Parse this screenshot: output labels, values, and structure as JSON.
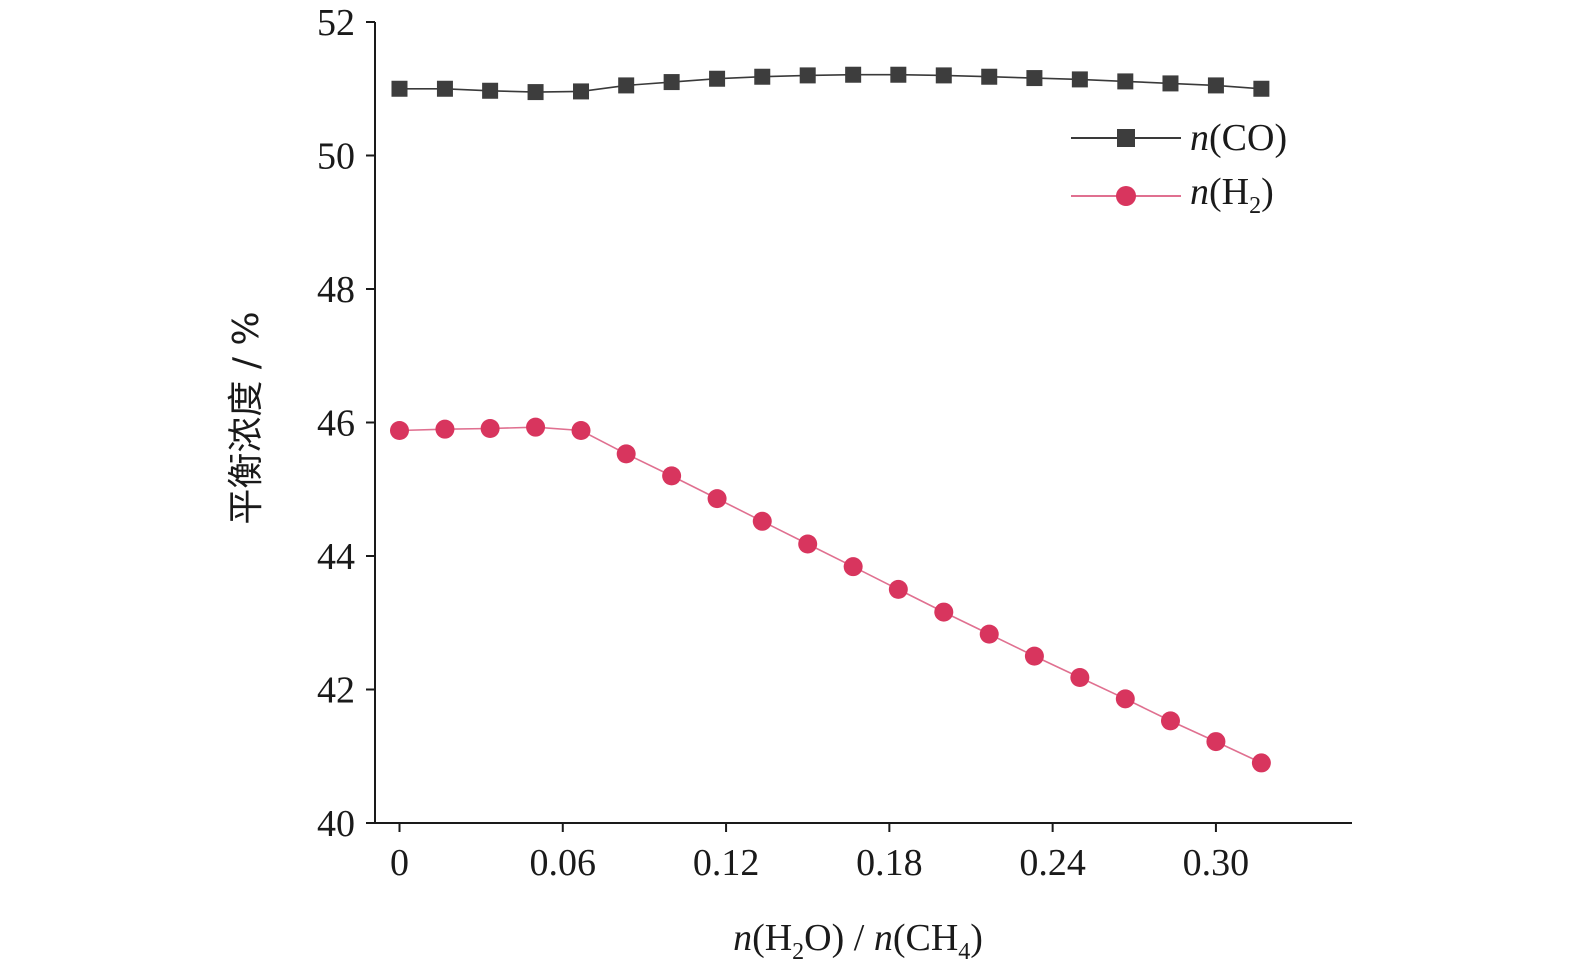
{
  "chart_data": {
    "type": "line",
    "title": "",
    "xlabel": {
      "n1": "n",
      "open1": "(H",
      "sub1": "2",
      "close1": "O) / ",
      "n2": "n",
      "open2": "(CH",
      "sub2": "4",
      "close2": ")"
    },
    "ylabel": "平衡浓度 / %",
    "xlim": [
      -0.009,
      0.35
    ],
    "ylim": [
      40,
      52
    ],
    "xticks": [
      0,
      0.06,
      0.12,
      0.18,
      0.24,
      0.3
    ],
    "xtick_labels": [
      "0",
      "0.06",
      "0.12",
      "0.18",
      "0.24",
      "0.30"
    ],
    "yticks": [
      40,
      42,
      44,
      46,
      48,
      50,
      52
    ],
    "ytick_labels": [
      "40",
      "42",
      "44",
      "46",
      "48",
      "50",
      "52"
    ],
    "legend_position": "top-right",
    "x": [
      0,
      0.0167,
      0.0333,
      0.05,
      0.0667,
      0.0833,
      0.1,
      0.1167,
      0.1333,
      0.15,
      0.1667,
      0.1833,
      0.2,
      0.2167,
      0.2333,
      0.25,
      0.2667,
      0.2833,
      0.3,
      0.3167
    ],
    "series": [
      {
        "key": "co",
        "legend": {
          "n": "n",
          "rest": "(CO)",
          "sub": "",
          "close": ""
        },
        "marker": "square",
        "line_color": "#3a3a3a",
        "marker_color": "#3d3d3d",
        "values": [
          51.0,
          51.0,
          50.97,
          50.95,
          50.96,
          51.05,
          51.1,
          51.15,
          51.18,
          51.2,
          51.21,
          51.21,
          51.2,
          51.18,
          51.16,
          51.14,
          51.11,
          51.08,
          51.05,
          51.0
        ]
      },
      {
        "key": "h2",
        "legend": {
          "n": "n",
          "rest": "(H",
          "sub": "2",
          "close": ")"
        },
        "marker": "circle",
        "line_color": "#e07090",
        "marker_color": "#d8355e",
        "values": [
          45.88,
          45.9,
          45.91,
          45.93,
          45.88,
          45.53,
          45.2,
          44.86,
          44.52,
          44.18,
          43.84,
          43.5,
          43.16,
          42.83,
          42.5,
          42.18,
          41.86,
          41.53,
          41.22,
          40.9
        ]
      }
    ]
  }
}
